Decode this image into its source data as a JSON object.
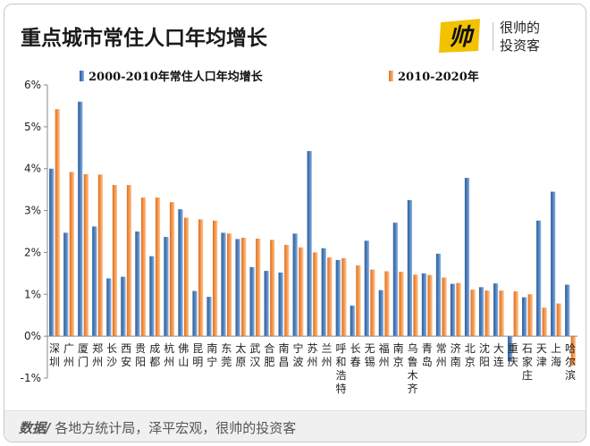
{
  "header": {
    "title": "重点城市常住人口年均增长",
    "brand_line1": "很帅的",
    "brand_line2": "投资客",
    "brand_logo_text": "帅",
    "brand_color": "#f2c200"
  },
  "footer": {
    "label": "数据/",
    "sources": "各地方统计局，泽平宏观，很帅的投资客"
  },
  "chart_data": {
    "type": "bar",
    "title": "",
    "xlabel": "",
    "ylabel": "",
    "ylim": [
      -1,
      6
    ],
    "yticks": [
      -1,
      0,
      1,
      2,
      3,
      4,
      5,
      6
    ],
    "ytick_labels": [
      "-1%",
      "0%",
      "1%",
      "2%",
      "3%",
      "4%",
      "5%",
      "6%"
    ],
    "grid": false,
    "legend_position": "top",
    "categories": [
      "深圳",
      "广州",
      "厦门",
      "郑州",
      "长沙",
      "西安",
      "贵阳",
      "成都",
      "杭州",
      "佛山",
      "昆明",
      "南宁",
      "东莞",
      "太原",
      "武汉",
      "合肥",
      "南昌",
      "宁波",
      "苏州",
      "兰州",
      "呼和浩特",
      "长春",
      "无锡",
      "福州",
      "南京",
      "乌鲁木齐",
      "青岛",
      "常州",
      "济南",
      "北京",
      "沈阳",
      "大连",
      "重庆",
      "石家庄",
      "天津",
      "上海",
      "哈尔滨"
    ],
    "series": [
      {
        "name": "2000-2010年常住人口年均增长",
        "color": "#4f81bd",
        "values": [
          4.0,
          2.47,
          5.6,
          2.62,
          1.38,
          1.42,
          2.5,
          1.91,
          2.37,
          3.03,
          1.08,
          0.94,
          2.47,
          2.32,
          1.65,
          1.56,
          1.52,
          2.45,
          4.42,
          2.1,
          1.82,
          0.73,
          2.28,
          1.1,
          2.71,
          3.25,
          1.5,
          1.97,
          1.25,
          3.78,
          1.17,
          1.26,
          -0.6,
          0.93,
          2.76,
          3.45,
          1.23
        ]
      },
      {
        "name": "2010-2020年",
        "color": "#f79646",
        "values": [
          5.42,
          3.92,
          3.87,
          3.86,
          3.61,
          3.61,
          3.31,
          3.31,
          3.2,
          2.83,
          2.79,
          2.76,
          2.45,
          2.35,
          2.33,
          2.3,
          2.18,
          2.12,
          2.0,
          1.88,
          1.86,
          1.69,
          1.59,
          1.55,
          1.54,
          1.47,
          1.46,
          1.4,
          1.27,
          1.11,
          1.09,
          1.09,
          1.07,
          1.0,
          0.68,
          0.78,
          -0.7
        ]
      }
    ]
  }
}
